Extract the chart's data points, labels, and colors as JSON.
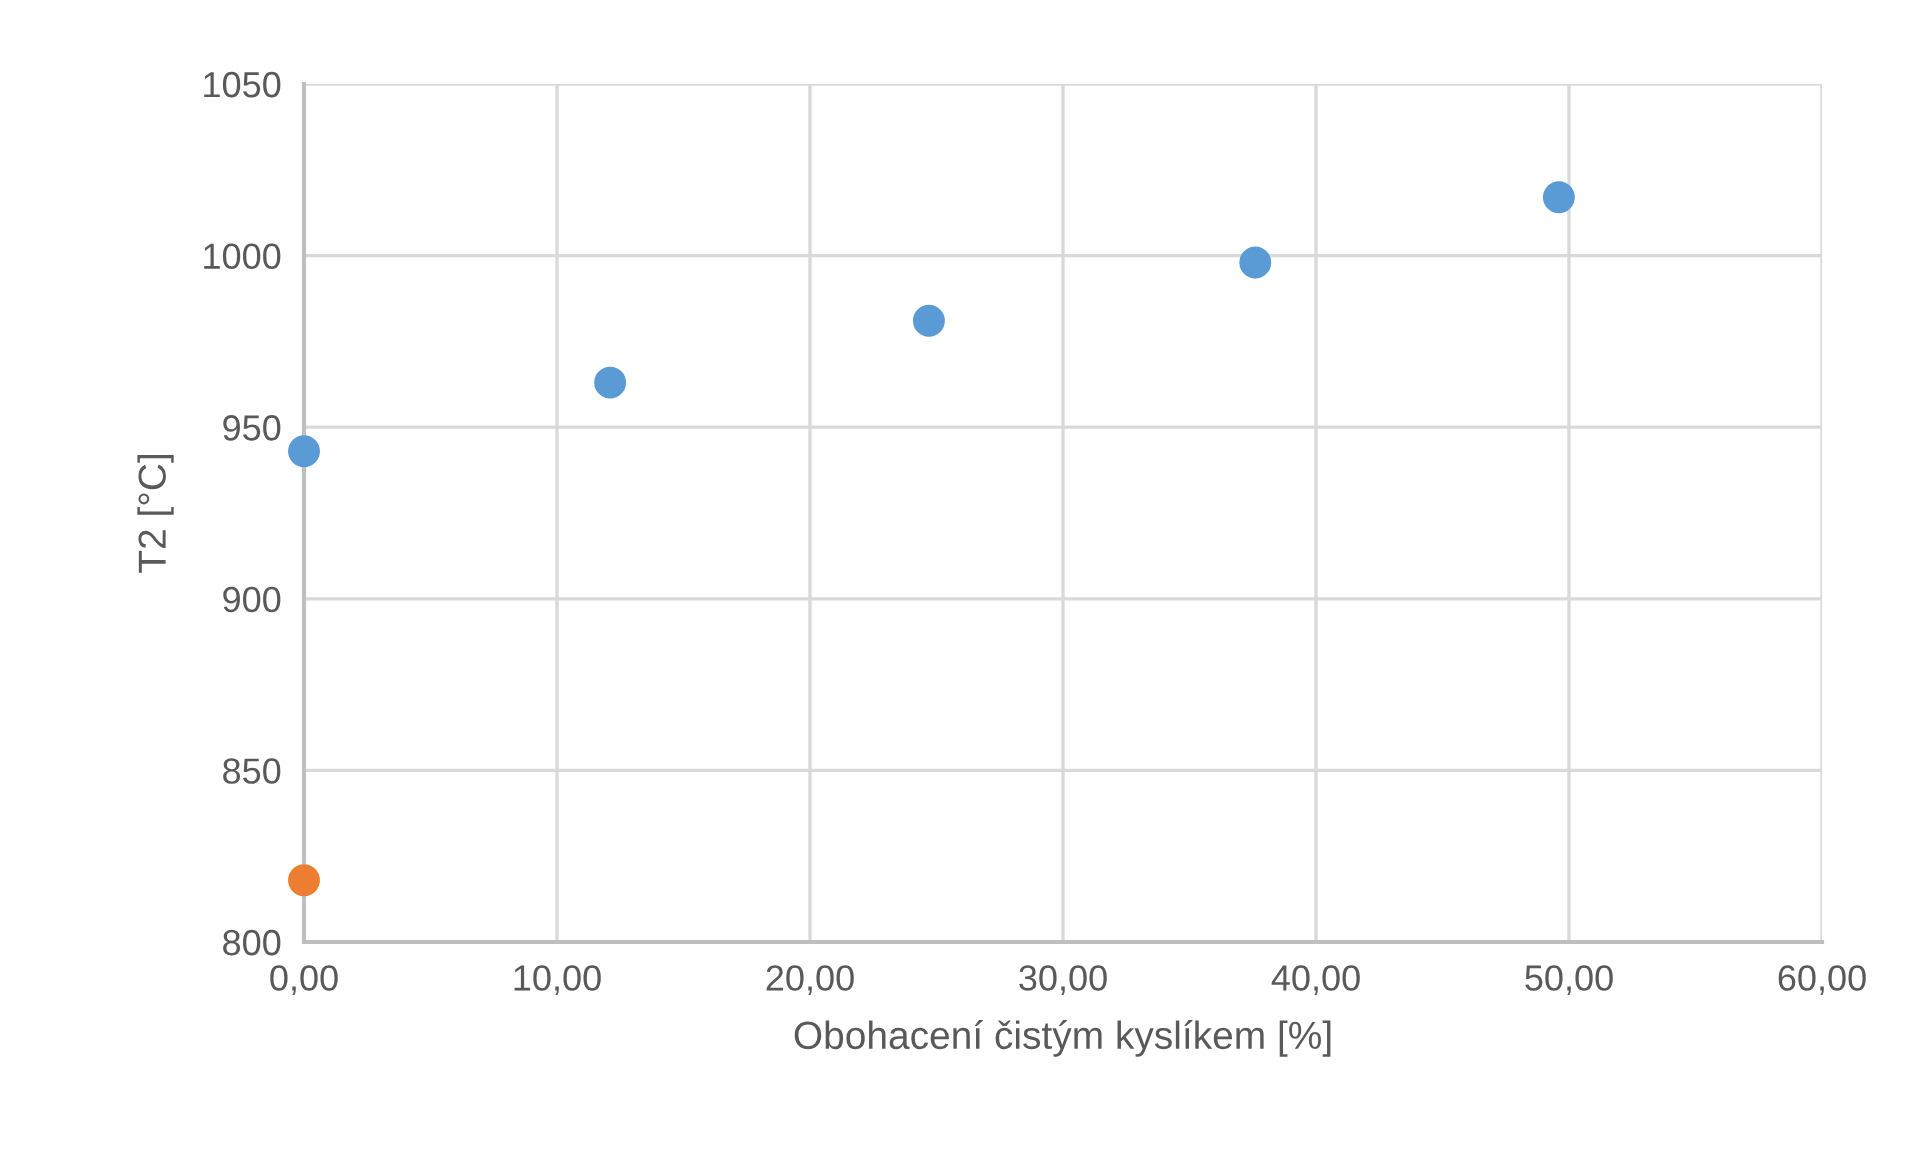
{
  "chart_data": {
    "type": "scatter",
    "xlabel": "Obohacení čistým kyslíkem [%]",
    "ylabel": "T2 [°C]",
    "series": [
      {
        "color": "#5b9bd5",
        "x": [
          0,
          12.1,
          24.7,
          37.6,
          49.6
        ],
        "values": [
          943,
          963,
          981,
          998,
          1017
        ]
      },
      {
        "color": "#ed7d31",
        "x": [
          0
        ],
        "values": [
          818
        ]
      }
    ],
    "xlim": [
      0,
      60
    ],
    "xticks": [
      {
        "value": 0,
        "label": "0,00"
      },
      {
        "value": 10,
        "label": "10,00"
      },
      {
        "value": 20,
        "label": "20,00"
      },
      {
        "value": 30,
        "label": "30,00"
      },
      {
        "value": 40,
        "label": "40,00"
      },
      {
        "value": 50,
        "label": "50,00"
      },
      {
        "value": 60,
        "label": "60,00"
      }
    ],
    "ylim": [
      800,
      1050
    ],
    "yticks": [
      800,
      850,
      900,
      950,
      1000,
      1050
    ],
    "grid": true,
    "marker": "circle",
    "legend": false
  }
}
